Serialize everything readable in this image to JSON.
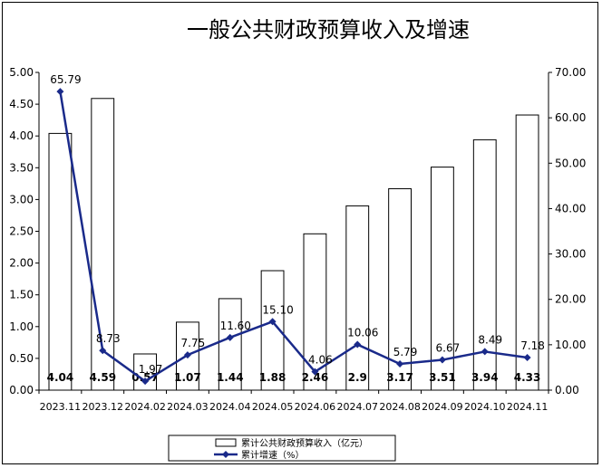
{
  "chart_data": {
    "type": "bar+line",
    "title": "一般公共财政预算收入及增速",
    "categories": [
      "2023.11",
      "2023.12",
      "2024.02",
      "2024.03",
      "2024.04",
      "2024.05",
      "2024.06",
      "2024.07",
      "2024.08",
      "2024.09",
      "2024.10",
      "2024.11"
    ],
    "series": [
      {
        "name": "累计公共财政预算收入（亿元）",
        "type": "bar",
        "axis": "left",
        "values": [
          4.04,
          4.59,
          0.57,
          1.07,
          1.44,
          1.88,
          2.46,
          2.9,
          3.17,
          3.51,
          3.94,
          4.33
        ],
        "labels": [
          "4.04",
          "4.59",
          "0.57",
          "1.07",
          "1.44",
          "1.88",
          "2.46",
          "2.9",
          "3.17",
          "3.51",
          "3.94",
          "4.33"
        ],
        "color": "#ffffff",
        "edge_color": "#000000"
      },
      {
        "name": "累计增速（%）",
        "type": "line",
        "axis": "right",
        "values": [
          65.79,
          8.73,
          1.97,
          7.75,
          11.6,
          15.1,
          4.06,
          10.06,
          5.79,
          6.67,
          8.49,
          7.18
        ],
        "labels": [
          "65.79",
          "8.73",
          "1.97",
          "7.75",
          "11.60",
          "15.10",
          "4.06",
          "10.06",
          "5.79",
          "6.67",
          "8.49",
          "7.18"
        ],
        "color": "#1a2a8a",
        "marker": "diamond"
      }
    ],
    "y_left": {
      "ylim": [
        0,
        5
      ],
      "ticks": [
        "0.00",
        "0.50",
        "1.00",
        "1.50",
        "2.00",
        "2.50",
        "3.00",
        "3.50",
        "4.00",
        "4.50",
        "5.00"
      ]
    },
    "y_right": {
      "ylim": [
        0,
        70
      ],
      "ticks": [
        "0.00",
        "10.00",
        "20.00",
        "30.00",
        "40.00",
        "50.00",
        "60.00",
        "70.00"
      ]
    },
    "grid": false,
    "legend": {
      "position": "bottom-center",
      "entries": [
        "累计公共财政预算收入（亿元）",
        "累计增速（%）"
      ]
    }
  }
}
